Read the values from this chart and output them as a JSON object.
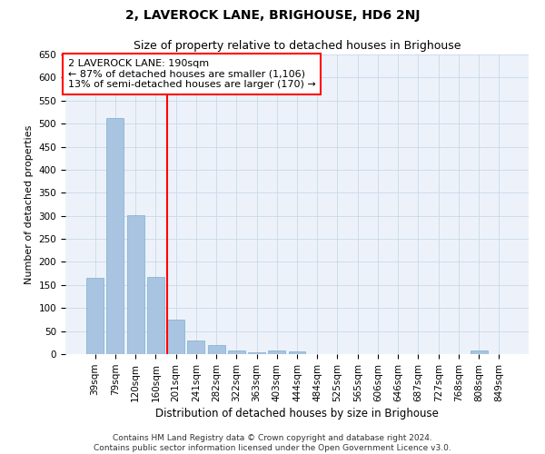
{
  "title": "2, LAVEROCK LANE, BRIGHOUSE, HD6 2NJ",
  "subtitle": "Size of property relative to detached houses in Brighouse",
  "xlabel": "Distribution of detached houses by size in Brighouse",
  "ylabel": "Number of detached properties",
  "categories": [
    "39sqm",
    "79sqm",
    "120sqm",
    "160sqm",
    "201sqm",
    "241sqm",
    "282sqm",
    "322sqm",
    "363sqm",
    "403sqm",
    "444sqm",
    "484sqm",
    "525sqm",
    "565sqm",
    "606sqm",
    "646sqm",
    "687sqm",
    "727sqm",
    "768sqm",
    "808sqm",
    "849sqm"
  ],
  "values": [
    165,
    513,
    302,
    168,
    75,
    30,
    20,
    7,
    3,
    8,
    5,
    0,
    0,
    0,
    0,
    0,
    0,
    0,
    0,
    7,
    0
  ],
  "bar_color": "#a8c4e0",
  "bar_edge_color": "#7aaecf",
  "grid_color": "#c8d8ea",
  "background_color": "#edf2fa",
  "annotation_line1": "2 LAVEROCK LANE: 190sqm",
  "annotation_line2": "← 87% of detached houses are smaller (1,106)",
  "annotation_line3": "13% of semi-detached houses are larger (170) →",
  "vline_index": 3.575,
  "ylim": [
    0,
    650
  ],
  "yticks": [
    0,
    50,
    100,
    150,
    200,
    250,
    300,
    350,
    400,
    450,
    500,
    550,
    600,
    650
  ],
  "footer_line1": "Contains HM Land Registry data © Crown copyright and database right 2024.",
  "footer_line2": "Contains public sector information licensed under the Open Government Licence v3.0.",
  "title_fontsize": 10,
  "subtitle_fontsize": 9,
  "annotation_fontsize": 8,
  "tick_fontsize": 7.5,
  "ylabel_fontsize": 8,
  "xlabel_fontsize": 8.5,
  "footer_fontsize": 6.5
}
